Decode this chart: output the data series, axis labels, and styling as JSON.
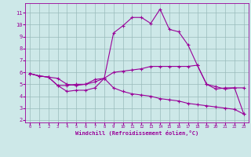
{
  "xlabel": "Windchill (Refroidissement éolien,°C)",
  "bg_color": "#cde8e8",
  "line_color": "#990099",
  "grid_color": "#99bbbb",
  "x_ticks": [
    0,
    1,
    2,
    3,
    4,
    5,
    6,
    7,
    8,
    9,
    10,
    11,
    12,
    13,
    14,
    15,
    16,
    17,
    18,
    19,
    20,
    21,
    22,
    23
  ],
  "y_ticks": [
    2,
    3,
    4,
    5,
    6,
    7,
    8,
    9,
    10,
    11
  ],
  "ylim": [
    1.8,
    11.8
  ],
  "xlim": [
    -0.5,
    23.5
  ],
  "line1_x": [
    0,
    1,
    2,
    3,
    4,
    5,
    6,
    7,
    8,
    9,
    10,
    11,
    12,
    13,
    14,
    15,
    16,
    17,
    18,
    19,
    20,
    21,
    22,
    23
  ],
  "line1_y": [
    5.9,
    5.7,
    5.6,
    4.9,
    4.9,
    5.0,
    5.0,
    5.2,
    5.5,
    9.3,
    9.9,
    10.6,
    10.6,
    10.1,
    11.3,
    9.6,
    9.4,
    8.3,
    6.6,
    5.0,
    4.6,
    4.7,
    4.7,
    2.5
  ],
  "line2_x": [
    0,
    1,
    2,
    3,
    4,
    5,
    6,
    7,
    8,
    9,
    10,
    11,
    12,
    13,
    14,
    15,
    16,
    17,
    18,
    19,
    20,
    21,
    22,
    23
  ],
  "line2_y": [
    5.9,
    5.7,
    5.6,
    5.5,
    5.0,
    4.9,
    5.0,
    5.4,
    5.5,
    6.0,
    6.1,
    6.2,
    6.3,
    6.5,
    6.5,
    6.5,
    6.5,
    6.5,
    6.6,
    5.0,
    4.8,
    4.6,
    4.7,
    4.7
  ],
  "line3_x": [
    0,
    1,
    2,
    3,
    4,
    5,
    6,
    7,
    8,
    9,
    10,
    11,
    12,
    13,
    14,
    15,
    16,
    17,
    18,
    19,
    20,
    21,
    22,
    23
  ],
  "line3_y": [
    5.9,
    5.7,
    5.6,
    4.9,
    4.4,
    4.5,
    4.5,
    4.7,
    5.5,
    4.7,
    4.4,
    4.2,
    4.1,
    4.0,
    3.8,
    3.7,
    3.6,
    3.4,
    3.3,
    3.2,
    3.1,
    3.0,
    2.9,
    2.5
  ]
}
